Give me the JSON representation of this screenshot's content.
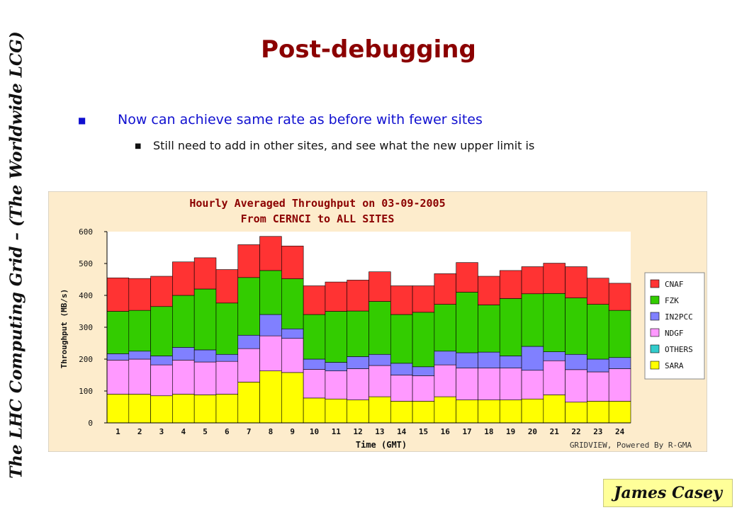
{
  "sidebar": {
    "text": "The LHC Computing Grid – (The Worldwide LCG)"
  },
  "slide": {
    "title": "Post-debugging",
    "bullet1": "Now can achieve same rate as before with fewer sites",
    "bullet2": "Still need to add in other sites, and see what the new upper limit is",
    "bullet_icon": "square-bullet-icon"
  },
  "author": "James Casey",
  "chart_data": {
    "type": "bar",
    "stacked": true,
    "title": "Hourly Averaged Throughput on 03-09-2005",
    "subtitle": "From CERNCI to ALL SITES",
    "xlabel": "Time (GMT)",
    "ylabel": "Throughput (MB/s)",
    "ylim": [
      0,
      600
    ],
    "yticks": [
      0,
      100,
      200,
      300,
      400,
      500,
      600
    ],
    "grid": false,
    "legend_placement": "right",
    "footer": "GRIDVIEW, Powered By R-GMA",
    "categories": [
      "1",
      "2",
      "3",
      "4",
      "5",
      "6",
      "7",
      "8",
      "9",
      "10",
      "11",
      "12",
      "13",
      "14",
      "15",
      "16",
      "17",
      "18",
      "19",
      "20",
      "21",
      "22",
      "23",
      "24"
    ],
    "series": [
      {
        "name": "SARA",
        "color": "#ffff00",
        "values": [
          90,
          90,
          85,
          90,
          88,
          90,
          128,
          163,
          158,
          78,
          75,
          72,
          82,
          68,
          68,
          82,
          72,
          72,
          72,
          75,
          88,
          65,
          68,
          68
        ]
      },
      {
        "name": "OTHERS",
        "color": "#33cccc",
        "values": [
          0,
          0,
          0,
          0,
          0,
          0,
          0,
          0,
          0,
          0,
          0,
          0,
          0,
          0,
          0,
          0,
          0,
          0,
          0,
          0,
          0,
          0,
          0,
          0
        ]
      },
      {
        "name": "NDGF",
        "color": "#ff99ff",
        "values": [
          107,
          110,
          97,
          107,
          103,
          103,
          105,
          110,
          107,
          90,
          88,
          98,
          98,
          82,
          80,
          100,
          100,
          100,
          100,
          90,
          107,
          102,
          92,
          102
        ]
      },
      {
        "name": "IN2PCC",
        "color": "#8080ff",
        "values": [
          20,
          25,
          28,
          40,
          38,
          22,
          42,
          67,
          30,
          32,
          27,
          38,
          35,
          37,
          28,
          43,
          48,
          50,
          38,
          75,
          28,
          48,
          40,
          35
        ]
      },
      {
        "name": "FZK",
        "color": "#33cc00",
        "values": [
          133,
          128,
          155,
          163,
          191,
          161,
          181,
          138,
          157,
          140,
          160,
          143,
          166,
          153,
          171,
          147,
          190,
          148,
          180,
          165,
          183,
          177,
          172,
          148
        ]
      },
      {
        "name": "CNAF",
        "color": "#ff3333",
        "values": [
          105,
          100,
          95,
          105,
          98,
          105,
          103,
          107,
          103,
          90,
          92,
          97,
          93,
          90,
          83,
          96,
          93,
          90,
          88,
          85,
          95,
          98,
          82,
          85
        ]
      }
    ]
  }
}
